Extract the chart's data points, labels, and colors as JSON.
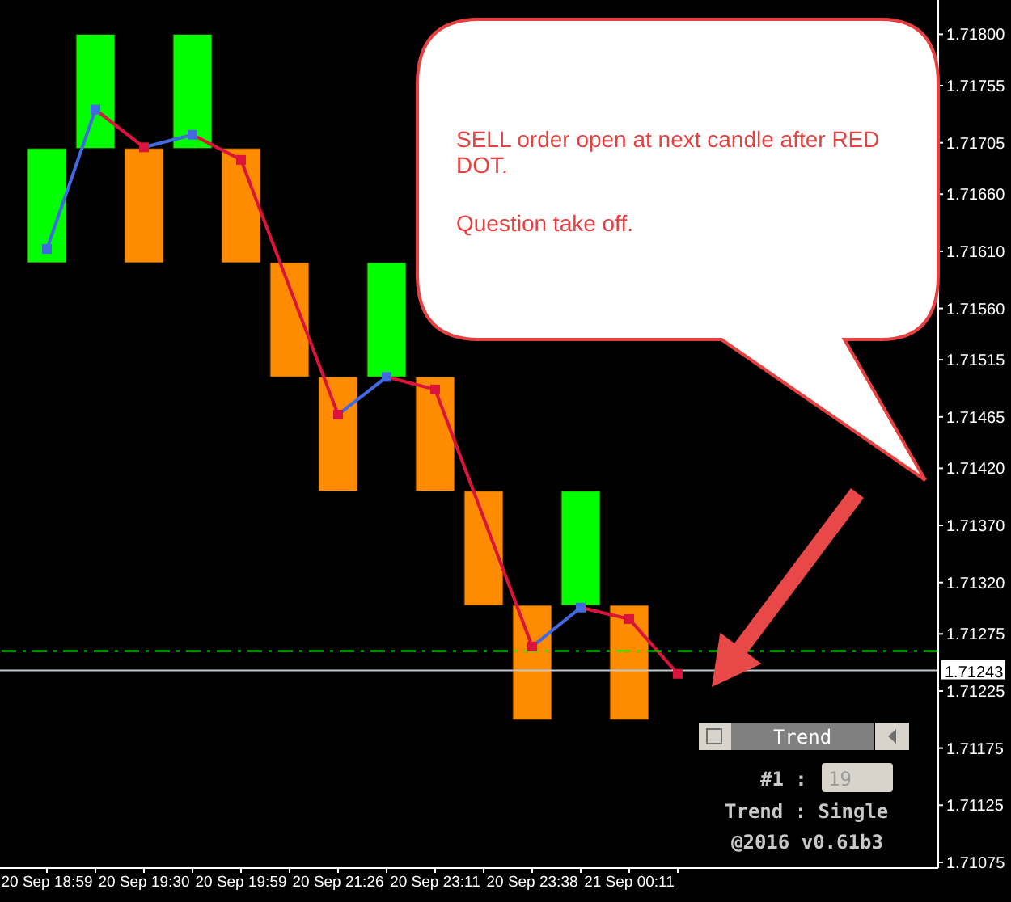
{
  "chart_data": {
    "type": "bar",
    "categories": [
      "20 Sep 18:59",
      null,
      "20 Sep 19:30",
      null,
      "20 Sep 19:59",
      null,
      "20 Sep 21:26",
      null,
      "20 Sep 23:11",
      null,
      "20 Sep 23:38",
      null,
      "21 Sep 00:11",
      null
    ],
    "series": [
      {
        "values": [
          0.001,
          0.001,
          0.001,
          0.001,
          0.001,
          0.001,
          0.001,
          0.001,
          0.001,
          0.001,
          0.001,
          0.001,
          0.001,
          null
        ],
        "base": [
          1.716,
          1.717,
          1.716,
          1.717,
          1.716,
          1.715,
          1.714,
          1.715,
          1.714,
          1.713,
          1.712,
          1.713,
          1.712,
          null
        ],
        "colors": [
          "#00ff00",
          "#00ff00",
          "#ff8c00",
          "#00ff00",
          "#ff8c00",
          "#ff8c00",
          "#ff8c00",
          "#00ff00",
          "#ff8c00",
          "#ff8c00",
          "#ff8c00",
          "#00ff00",
          "#ff8c00",
          "#ff8c00"
        ]
      },
      {
        "type": "line",
        "values": [
          1.71612,
          1.71734,
          1.71701,
          1.71712,
          1.7169,
          null,
          1.71467,
          1.715,
          1.71489,
          null,
          1.71264,
          1.71298,
          1.71288,
          1.7124
        ],
        "colors": [
          "#4169e1",
          "#4169e1",
          "#dc143c",
          "#4169e1",
          "#dc143c",
          null,
          "#dc143c",
          "#4169e1",
          "#dc143c",
          null,
          "#dc143c",
          "#4169e1",
          "#dc143c",
          "#dc143c"
        ]
      }
    ],
    "marker": "square",
    "ylim": [
      1.7107,
      1.7183
    ],
    "yticks": [
      {
        "value": 1.718,
        "label": "1.71800"
      },
      {
        "value": 1.71755,
        "label": "1.71755"
      },
      {
        "value": 1.71705,
        "label": "1.71705"
      },
      {
        "value": 1.7166,
        "label": "1.71660"
      },
      {
        "value": 1.7161,
        "label": "1.71610"
      },
      {
        "value": 1.7156,
        "label": "1.71560"
      },
      {
        "value": 1.71515,
        "label": "1.71515"
      },
      {
        "value": 1.71465,
        "label": "1.71465"
      },
      {
        "value": 1.7142,
        "label": "1.71420"
      },
      {
        "value": 1.7137,
        "label": "1.71370"
      },
      {
        "value": 1.7132,
        "label": "1.71320"
      },
      {
        "value": 1.71275,
        "label": "1.71275"
      },
      {
        "value": 1.71225,
        "label": "1.71225"
      },
      {
        "value": 1.71175,
        "label": "1.71175"
      },
      {
        "value": 1.71125,
        "label": "1.71125"
      },
      {
        "value": 1.71075,
        "label": "1.71075"
      }
    ],
    "ref_lines": [
      {
        "axis": "y",
        "value": 1.7126,
        "color": "#00ff00",
        "line_style": "dashed"
      },
      {
        "axis": "y",
        "value": 1.71243,
        "label": "1.71243",
        "color": "#c0c8d0"
      }
    ],
    "annotations": [
      "SELL order open at next candle after RED DOT.",
      "Question take off.",
      "Trend",
      "#1 :",
      "19",
      "Trend : Single",
      "@2016 v0.61b3"
    ]
  }
}
